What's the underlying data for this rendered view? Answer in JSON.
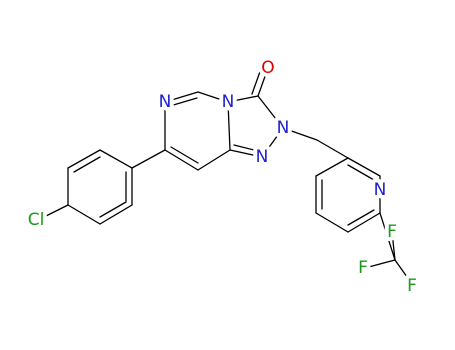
{
  "atoms": [
    "O",
    "N",
    "N",
    "N",
    "N",
    "N",
    "Cl",
    "F",
    "F",
    "F"
  ]
}
